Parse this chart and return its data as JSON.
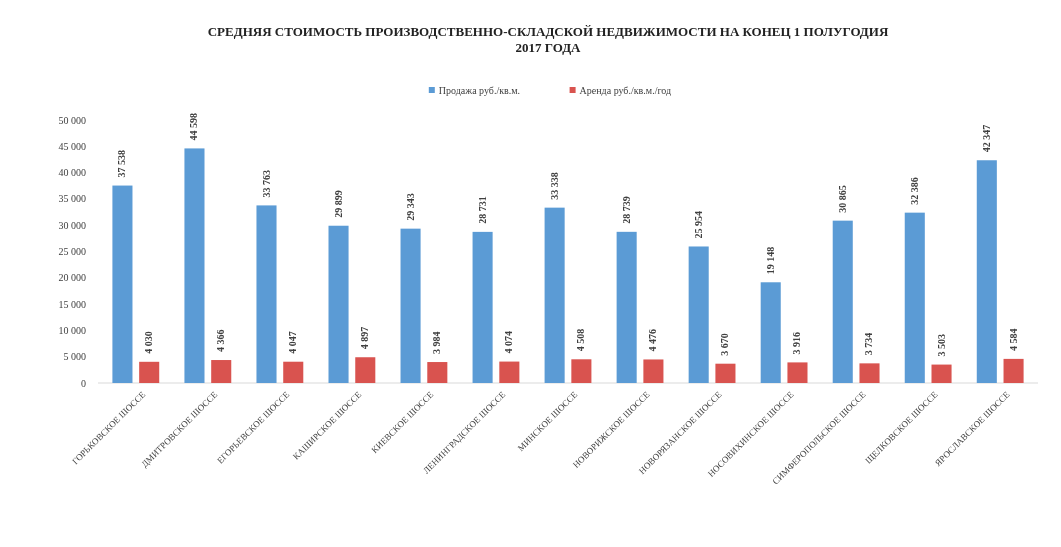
{
  "chart_data": {
    "type": "bar",
    "title": "СРЕДНЯЯ СТОИМОСТЬ ПРОИЗВОДСТВЕННО-СКЛАДСКОЙ НЕДВИЖИМОСТИ НА КОНЕЦ 1 ПОЛУГОДИЯ 2017 ГОДА",
    "categories": [
      "ГОРЬКОВСКОЕ ШОССЕ",
      "ДМИТРОВСКОЕ ШОССЕ",
      "ЕГОРЬЕВСКОЕ ШОССЕ",
      "КАШИРСКОЕ ШОССЕ",
      "КИЕВСКОЕ ШОССЕ",
      "ЛЕНИНГРАДСКОЕ ШОССЕ",
      "МИНСКОЕ ШОССЕ",
      "НОВОРИЖСКОЕ ШОССЕ",
      "НОВОРЯЗАНСКОЕ ШОССЕ",
      "НОСОВИХИНСКОЕ ШОССЕ",
      "СИМФЕРОПОЛЬСКОЕ ШОССЕ",
      "ЩЕЛКОВСКОЕ ШОССЕ",
      "ЯРОСЛАВСКОЕ ШОССЕ"
    ],
    "series": [
      {
        "name": "Продажа руб./кв.м.",
        "color": "#5b9bd5",
        "values": [
          37538,
          44598,
          33763,
          29899,
          29343,
          28731,
          33338,
          28739,
          25954,
          19148,
          30865,
          32386,
          42347
        ],
        "value_labels": [
          "37 538",
          "44 598",
          "33 763",
          "29 899",
          "29 343",
          "28 731",
          "33 338",
          "28 739",
          "25 954",
          "19 148",
          "30 865",
          "32 386",
          "42 347"
        ]
      },
      {
        "name": "Аренда руб./кв.м./год",
        "color": "#d9534f",
        "values": [
          4030,
          4366,
          4047,
          4897,
          3984,
          4074,
          4508,
          4476,
          3670,
          3916,
          3734,
          3503,
          4584
        ],
        "value_labels": [
          "4 030",
          "4 366",
          "4 047",
          "4 897",
          "3 984",
          "4 074",
          "4 508",
          "4 476",
          "3 670",
          "3 916",
          "3 734",
          "3 503",
          "4 584"
        ]
      }
    ],
    "ylim": [
      0,
      50000
    ],
    "yticks": [
      {
        "value": 0,
        "label": "0"
      },
      {
        "value": 5000,
        "label": "5 000"
      },
      {
        "value": 10000,
        "label": "10 000"
      },
      {
        "value": 15000,
        "label": "15 000"
      },
      {
        "value": 20000,
        "label": "20 000"
      },
      {
        "value": 25000,
        "label": "25 000"
      },
      {
        "value": 30000,
        "label": "30 000"
      },
      {
        "value": 35000,
        "label": "35 000"
      },
      {
        "value": 40000,
        "label": "40 000"
      },
      {
        "value": 45000,
        "label": "45 000"
      },
      {
        "value": 50000,
        "label": "50 000"
      }
    ],
    "grid": false,
    "legend": "top"
  }
}
